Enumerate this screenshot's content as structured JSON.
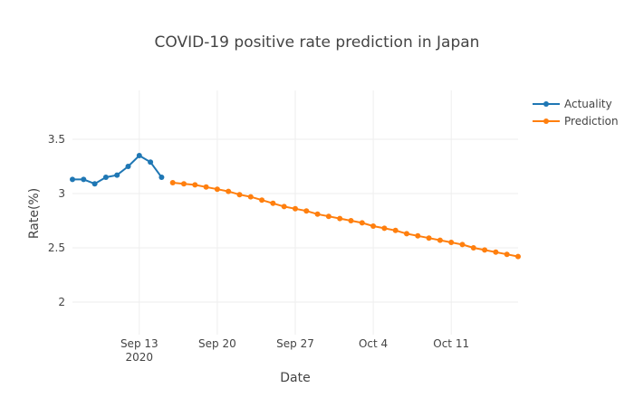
{
  "chart_data": {
    "type": "line",
    "title": "COVID-19 positive rate prediction in Japan",
    "xlabel": "Date",
    "ylabel": "Rate(%)",
    "xlim": [
      "2020-09-07",
      "2020-10-17"
    ],
    "ylim": [
      1.7,
      3.95
    ],
    "x_ticks": [
      {
        "date": "2020-09-13",
        "label": "Sep 13",
        "sublabel": "2020"
      },
      {
        "date": "2020-09-20",
        "label": "Sep 20",
        "sublabel": ""
      },
      {
        "date": "2020-09-27",
        "label": "Sep 27",
        "sublabel": ""
      },
      {
        "date": "2020-10-04",
        "label": "Oct 4",
        "sublabel": ""
      },
      {
        "date": "2020-10-11",
        "label": "Oct 11",
        "sublabel": ""
      }
    ],
    "y_ticks": [
      {
        "value": 2,
        "label": "2"
      },
      {
        "value": 2.5,
        "label": "2.5"
      },
      {
        "value": 3,
        "label": "3"
      },
      {
        "value": 3.5,
        "label": "3.5"
      }
    ],
    "grid": true,
    "legend": "top-right",
    "series": [
      {
        "name": "Actuality",
        "color": "#1f77b4",
        "x": [
          "2020-09-07",
          "2020-09-08",
          "2020-09-09",
          "2020-09-10",
          "2020-09-11",
          "2020-09-12",
          "2020-09-13",
          "2020-09-14",
          "2020-09-15"
        ],
        "y": [
          3.13,
          3.13,
          3.09,
          3.15,
          3.17,
          3.25,
          3.35,
          3.29,
          3.15
        ]
      },
      {
        "name": "Prediction",
        "color": "#ff7f0e",
        "x": [
          "2020-09-16",
          "2020-09-17",
          "2020-09-18",
          "2020-09-19",
          "2020-09-20",
          "2020-09-21",
          "2020-09-22",
          "2020-09-23",
          "2020-09-24",
          "2020-09-25",
          "2020-09-26",
          "2020-09-27",
          "2020-09-28",
          "2020-09-29",
          "2020-09-30",
          "2020-10-01",
          "2020-10-02",
          "2020-10-03",
          "2020-10-04",
          "2020-10-05",
          "2020-10-06",
          "2020-10-07",
          "2020-10-08",
          "2020-10-09",
          "2020-10-10",
          "2020-10-11",
          "2020-10-12",
          "2020-10-13",
          "2020-10-14",
          "2020-10-15",
          "2020-10-16",
          "2020-10-17"
        ],
        "y": [
          3.1,
          3.09,
          3.08,
          3.06,
          3.04,
          3.02,
          2.99,
          2.97,
          2.94,
          2.91,
          2.88,
          2.86,
          2.84,
          2.81,
          2.79,
          2.77,
          2.75,
          2.73,
          2.7,
          2.68,
          2.66,
          2.63,
          2.61,
          2.59,
          2.57,
          2.55,
          2.53,
          2.5,
          2.48,
          2.46,
          2.44,
          2.42
        ]
      }
    ]
  }
}
